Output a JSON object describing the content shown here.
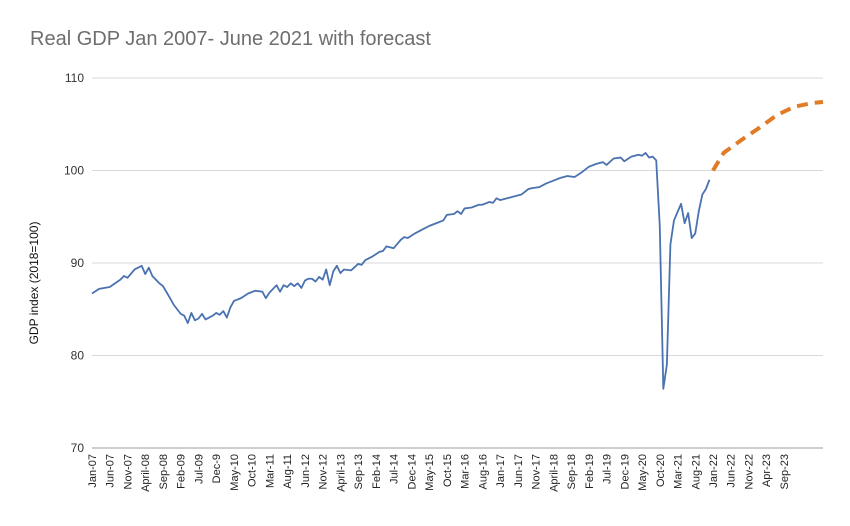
{
  "chart_data": {
    "type": "line",
    "title": "Real GDP Jan 2007- June 2021 with forecast",
    "xlabel": "",
    "ylabel": "GDP index (2018=100)",
    "ylim": [
      70,
      110
    ],
    "yticks": [
      70,
      80,
      90,
      100,
      110
    ],
    "grid": "horizontal",
    "legend": "none",
    "x_tick_labels": [
      "Jan-07",
      "Jun-07",
      "Nov-07",
      "April-08",
      "Sep-08",
      "Feb-09",
      "Jul-09",
      "Dec-9",
      "May-10",
      "Oct-10",
      "Mar-11",
      "Aug-11",
      "Jun-12",
      "Nov-12",
      "April-13",
      "Sep-13",
      "Feb-14",
      "Jul-14",
      "Dec-14",
      "May-15",
      "Oct-15",
      "Mar-16",
      "Aug-16",
      "Jan-17",
      "Jun-17",
      "Nov-17",
      "April-18",
      "Sep-18",
      "Feb-19",
      "Jul-19",
      "Dec-19",
      "May-20",
      "Oct-20",
      "Mar-21",
      "Aug-21",
      "Jan-22",
      "Jun-22",
      "Nov-22",
      "Apr-23",
      "Sep-23"
    ],
    "series": [
      {
        "style": "solid",
        "color": "#4a72b0",
        "points": [
          [
            "2007-01",
            86.7
          ],
          [
            "2007-03",
            87.2
          ],
          [
            "2007-06",
            87.4
          ],
          [
            "2007-09",
            88.2
          ],
          [
            "2007-10",
            88.6
          ],
          [
            "2007-11",
            88.4
          ],
          [
            "2008-01",
            89.3
          ],
          [
            "2008-03",
            89.7
          ],
          [
            "2008-04",
            88.8
          ],
          [
            "2008-05",
            89.5
          ],
          [
            "2008-06",
            88.6
          ],
          [
            "2008-08",
            87.8
          ],
          [
            "2008-09",
            87.5
          ],
          [
            "2008-11",
            86.2
          ],
          [
            "2008-12",
            85.5
          ],
          [
            "2009-02",
            84.5
          ],
          [
            "2009-03",
            84.3
          ],
          [
            "2009-04",
            83.5
          ],
          [
            "2009-05",
            84.6
          ],
          [
            "2009-06",
            83.8
          ],
          [
            "2009-07",
            84.0
          ],
          [
            "2009-08",
            84.5
          ],
          [
            "2009-09",
            83.9
          ],
          [
            "2009-11",
            84.3
          ],
          [
            "2009-12",
            84.6
          ],
          [
            "2010-01",
            84.4
          ],
          [
            "2010-02",
            84.8
          ],
          [
            "2010-03",
            84.1
          ],
          [
            "2010-04",
            85.2
          ],
          [
            "2010-05",
            85.9
          ],
          [
            "2010-07",
            86.2
          ],
          [
            "2010-09",
            86.7
          ],
          [
            "2010-11",
            87.0
          ],
          [
            "2011-01",
            86.9
          ],
          [
            "2011-02",
            86.2
          ],
          [
            "2011-03",
            86.8
          ],
          [
            "2011-05",
            87.6
          ],
          [
            "2011-06",
            86.9
          ],
          [
            "2011-07",
            87.6
          ],
          [
            "2011-08",
            87.4
          ],
          [
            "2011-09",
            87.8
          ],
          [
            "2011-10",
            87.5
          ],
          [
            "2011-11",
            87.8
          ],
          [
            "2011-12",
            87.3
          ],
          [
            "2012-01",
            88.1
          ],
          [
            "2012-02",
            88.3
          ],
          [
            "2012-03",
            88.3
          ],
          [
            "2012-04",
            88.0
          ],
          [
            "2012-05",
            88.5
          ],
          [
            "2012-06",
            88.2
          ],
          [
            "2012-07",
            89.3
          ],
          [
            "2012-08",
            87.6
          ],
          [
            "2012-09",
            89.1
          ],
          [
            "2012-10",
            89.7
          ],
          [
            "2012-11",
            88.9
          ],
          [
            "2012-12",
            89.3
          ],
          [
            "2013-02",
            89.2
          ],
          [
            "2013-04",
            89.9
          ],
          [
            "2013-05",
            89.8
          ],
          [
            "2013-06",
            90.3
          ],
          [
            "2013-08",
            90.7
          ],
          [
            "2013-10",
            91.2
          ],
          [
            "2013-11",
            91.3
          ],
          [
            "2013-12",
            91.8
          ],
          [
            "2014-02",
            91.6
          ],
          [
            "2014-04",
            92.5
          ],
          [
            "2014-05",
            92.8
          ],
          [
            "2014-06",
            92.7
          ],
          [
            "2014-08",
            93.2
          ],
          [
            "2014-10",
            93.6
          ],
          [
            "2014-12",
            94.0
          ],
          [
            "2015-02",
            94.3
          ],
          [
            "2015-04",
            94.6
          ],
          [
            "2015-05",
            95.2
          ],
          [
            "2015-07",
            95.3
          ],
          [
            "2015-08",
            95.6
          ],
          [
            "2015-09",
            95.3
          ],
          [
            "2015-10",
            95.9
          ],
          [
            "2015-12",
            96.0
          ],
          [
            "2016-02",
            96.3
          ],
          [
            "2016-03",
            96.3
          ],
          [
            "2016-05",
            96.6
          ],
          [
            "2016-06",
            96.5
          ],
          [
            "2016-07",
            97.0
          ],
          [
            "2016-08",
            96.8
          ],
          [
            "2016-10",
            97.0
          ],
          [
            "2016-12",
            97.2
          ],
          [
            "2017-02",
            97.4
          ],
          [
            "2017-04",
            98.0
          ],
          [
            "2017-05",
            98.1
          ],
          [
            "2017-07",
            98.2
          ],
          [
            "2017-09",
            98.6
          ],
          [
            "2017-11",
            98.9
          ],
          [
            "2018-01",
            99.2
          ],
          [
            "2018-03",
            99.4
          ],
          [
            "2018-05",
            99.3
          ],
          [
            "2018-07",
            99.8
          ],
          [
            "2018-09",
            100.4
          ],
          [
            "2018-11",
            100.7
          ],
          [
            "2019-01",
            100.9
          ],
          [
            "2019-02",
            100.6
          ],
          [
            "2019-04",
            101.3
          ],
          [
            "2019-06",
            101.4
          ],
          [
            "2019-07",
            101.0
          ],
          [
            "2019-09",
            101.5
          ],
          [
            "2019-11",
            101.7
          ],
          [
            "2019-12",
            101.6
          ],
          [
            "2020-01",
            101.9
          ],
          [
            "2020-02",
            101.4
          ],
          [
            "2020-03",
            101.5
          ],
          [
            "2020-04",
            101.1
          ],
          [
            "2020-05",
            94.0
          ],
          [
            "2020-06",
            76.4
          ],
          [
            "2020-07",
            79.0
          ],
          [
            "2020-08",
            92.0
          ],
          [
            "2020-09",
            94.6
          ],
          [
            "2020-10",
            95.5
          ],
          [
            "2020-11",
            96.4
          ],
          [
            "2020-12",
            94.3
          ],
          [
            "2021-01",
            95.4
          ],
          [
            "2021-02",
            92.7
          ],
          [
            "2021-03",
            93.2
          ],
          [
            "2021-04",
            95.6
          ],
          [
            "2021-05",
            97.4
          ],
          [
            "2021-06",
            98.0
          ],
          [
            "2021-07",
            99.0
          ]
        ]
      },
      {
        "style": "dashed",
        "color": "#e07b28",
        "points": [
          [
            "2021-08",
            100.0
          ],
          [
            "2021-11",
            101.9
          ],
          [
            "2022-04",
            103.3
          ],
          [
            "2022-09",
            104.6
          ],
          [
            "2023-02",
            106.0
          ],
          [
            "2023-07",
            106.9
          ],
          [
            "2023-12",
            107.3
          ],
          [
            "2024-03",
            107.4
          ]
        ]
      }
    ]
  }
}
